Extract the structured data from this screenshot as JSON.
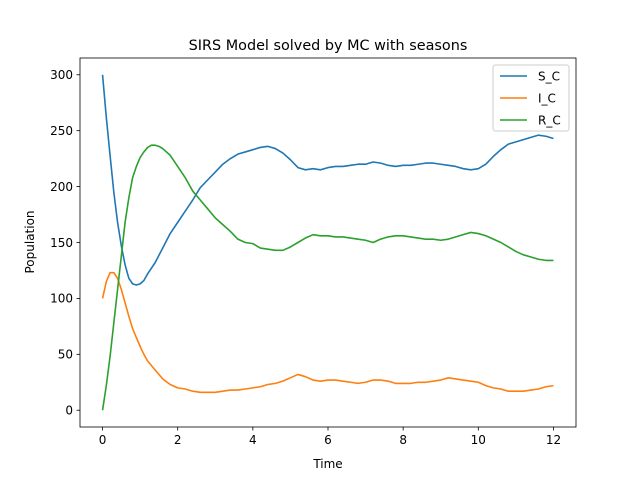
{
  "chart_data": {
    "type": "line",
    "title": "SIRS Model solved by MC with seasons",
    "xlabel": "Time",
    "ylabel": "Population",
    "xlim": [
      -0.6,
      12.6
    ],
    "ylim": [
      -15,
      315
    ],
    "xticks": [
      0,
      2,
      4,
      6,
      8,
      10,
      12
    ],
    "yticks": [
      0,
      50,
      100,
      150,
      200,
      250,
      300
    ],
    "grid": false,
    "legend": "top-right",
    "series": [
      {
        "name": "S_C",
        "color": "#1f77b4",
        "points": [
          [
            0,
            300
          ],
          [
            0.1,
            262
          ],
          [
            0.2,
            228
          ],
          [
            0.3,
            195
          ],
          [
            0.4,
            168
          ],
          [
            0.5,
            147
          ],
          [
            0.6,
            130
          ],
          [
            0.7,
            118
          ],
          [
            0.8,
            113
          ],
          [
            0.9,
            112
          ],
          [
            1.0,
            113
          ],
          [
            1.1,
            116
          ],
          [
            1.2,
            122
          ],
          [
            1.4,
            132
          ],
          [
            1.6,
            145
          ],
          [
            1.8,
            158
          ],
          [
            2.0,
            168
          ],
          [
            2.2,
            178
          ],
          [
            2.4,
            188
          ],
          [
            2.6,
            199
          ],
          [
            2.8,
            206
          ],
          [
            3.0,
            213
          ],
          [
            3.2,
            220
          ],
          [
            3.4,
            225
          ],
          [
            3.6,
            229
          ],
          [
            3.8,
            231
          ],
          [
            4.0,
            233
          ],
          [
            4.2,
            235
          ],
          [
            4.4,
            236
          ],
          [
            4.6,
            234
          ],
          [
            4.8,
            230
          ],
          [
            5.0,
            224
          ],
          [
            5.2,
            217
          ],
          [
            5.4,
            215
          ],
          [
            5.6,
            216
          ],
          [
            5.8,
            215
          ],
          [
            6.0,
            217
          ],
          [
            6.2,
            218
          ],
          [
            6.4,
            218
          ],
          [
            6.6,
            219
          ],
          [
            6.8,
            220
          ],
          [
            7.0,
            220
          ],
          [
            7.2,
            222
          ],
          [
            7.4,
            221
          ],
          [
            7.6,
            219
          ],
          [
            7.8,
            218
          ],
          [
            8.0,
            219
          ],
          [
            8.2,
            219
          ],
          [
            8.4,
            220
          ],
          [
            8.6,
            221
          ],
          [
            8.8,
            221
          ],
          [
            9.0,
            220
          ],
          [
            9.2,
            219
          ],
          [
            9.4,
            218
          ],
          [
            9.6,
            216
          ],
          [
            9.8,
            215
          ],
          [
            10.0,
            216
          ],
          [
            10.2,
            220
          ],
          [
            10.4,
            227
          ],
          [
            10.6,
            233
          ],
          [
            10.8,
            238
          ],
          [
            11.0,
            240
          ],
          [
            11.2,
            242
          ],
          [
            11.4,
            244
          ],
          [
            11.6,
            246
          ],
          [
            11.8,
            245
          ],
          [
            12.0,
            243
          ]
        ]
      },
      {
        "name": "I_C",
        "color": "#ff7f0e",
        "points": [
          [
            0,
            100
          ],
          [
            0.1,
            115
          ],
          [
            0.2,
            123
          ],
          [
            0.3,
            123
          ],
          [
            0.4,
            118
          ],
          [
            0.5,
            108
          ],
          [
            0.6,
            96
          ],
          [
            0.7,
            84
          ],
          [
            0.8,
            73
          ],
          [
            0.9,
            65
          ],
          [
            1.0,
            57
          ],
          [
            1.1,
            50
          ],
          [
            1.2,
            44
          ],
          [
            1.4,
            36
          ],
          [
            1.6,
            28
          ],
          [
            1.8,
            23
          ],
          [
            2.0,
            20
          ],
          [
            2.2,
            19
          ],
          [
            2.4,
            17
          ],
          [
            2.6,
            16
          ],
          [
            2.8,
            16
          ],
          [
            3.0,
            16
          ],
          [
            3.2,
            17
          ],
          [
            3.4,
            18
          ],
          [
            3.6,
            18
          ],
          [
            3.8,
            19
          ],
          [
            4.0,
            20
          ],
          [
            4.2,
            21
          ],
          [
            4.4,
            23
          ],
          [
            4.6,
            24
          ],
          [
            4.8,
            26
          ],
          [
            5.0,
            29
          ],
          [
            5.2,
            32
          ],
          [
            5.4,
            30
          ],
          [
            5.6,
            27
          ],
          [
            5.8,
            26
          ],
          [
            6.0,
            27
          ],
          [
            6.2,
            27
          ],
          [
            6.4,
            26
          ],
          [
            6.6,
            25
          ],
          [
            6.8,
            24
          ],
          [
            7.0,
            25
          ],
          [
            7.2,
            27
          ],
          [
            7.4,
            27
          ],
          [
            7.6,
            26
          ],
          [
            7.8,
            24
          ],
          [
            8.0,
            24
          ],
          [
            8.2,
            24
          ],
          [
            8.4,
            25
          ],
          [
            8.6,
            25
          ],
          [
            8.8,
            26
          ],
          [
            9.0,
            27
          ],
          [
            9.2,
            29
          ],
          [
            9.4,
            28
          ],
          [
            9.6,
            27
          ],
          [
            9.8,
            26
          ],
          [
            10.0,
            25
          ],
          [
            10.2,
            22
          ],
          [
            10.4,
            20
          ],
          [
            10.6,
            19
          ],
          [
            10.8,
            17
          ],
          [
            11.0,
            17
          ],
          [
            11.2,
            17
          ],
          [
            11.4,
            18
          ],
          [
            11.6,
            19
          ],
          [
            11.8,
            21
          ],
          [
            12.0,
            22
          ]
        ]
      },
      {
        "name": "R_C",
        "color": "#2ca02c",
        "points": [
          [
            0,
            0
          ],
          [
            0.1,
            22
          ],
          [
            0.2,
            48
          ],
          [
            0.3,
            78
          ],
          [
            0.4,
            108
          ],
          [
            0.5,
            138
          ],
          [
            0.6,
            168
          ],
          [
            0.7,
            190
          ],
          [
            0.8,
            208
          ],
          [
            0.9,
            218
          ],
          [
            1.0,
            226
          ],
          [
            1.1,
            231
          ],
          [
            1.2,
            235
          ],
          [
            1.3,
            237
          ],
          [
            1.4,
            237
          ],
          [
            1.5,
            236
          ],
          [
            1.6,
            234
          ],
          [
            1.8,
            228
          ],
          [
            2.0,
            218
          ],
          [
            2.2,
            208
          ],
          [
            2.4,
            196
          ],
          [
            2.6,
            188
          ],
          [
            2.8,
            180
          ],
          [
            3.0,
            172
          ],
          [
            3.2,
            166
          ],
          [
            3.4,
            160
          ],
          [
            3.6,
            153
          ],
          [
            3.8,
            150
          ],
          [
            4.0,
            149
          ],
          [
            4.2,
            145
          ],
          [
            4.4,
            144
          ],
          [
            4.6,
            143
          ],
          [
            4.8,
            143
          ],
          [
            5.0,
            146
          ],
          [
            5.2,
            150
          ],
          [
            5.4,
            154
          ],
          [
            5.6,
            157
          ],
          [
            5.8,
            156
          ],
          [
            6.0,
            156
          ],
          [
            6.2,
            155
          ],
          [
            6.4,
            155
          ],
          [
            6.6,
            154
          ],
          [
            6.8,
            153
          ],
          [
            7.0,
            152
          ],
          [
            7.2,
            150
          ],
          [
            7.4,
            153
          ],
          [
            7.6,
            155
          ],
          [
            7.8,
            156
          ],
          [
            8.0,
            156
          ],
          [
            8.2,
            155
          ],
          [
            8.4,
            154
          ],
          [
            8.6,
            153
          ],
          [
            8.8,
            153
          ],
          [
            9.0,
            152
          ],
          [
            9.2,
            153
          ],
          [
            9.4,
            155
          ],
          [
            9.6,
            157
          ],
          [
            9.8,
            159
          ],
          [
            10.0,
            158
          ],
          [
            10.2,
            156
          ],
          [
            10.4,
            153
          ],
          [
            10.6,
            150
          ],
          [
            10.8,
            146
          ],
          [
            11.0,
            142
          ],
          [
            11.2,
            139
          ],
          [
            11.4,
            137
          ],
          [
            11.6,
            135
          ],
          [
            11.8,
            134
          ],
          [
            12.0,
            134
          ]
        ]
      }
    ]
  }
}
